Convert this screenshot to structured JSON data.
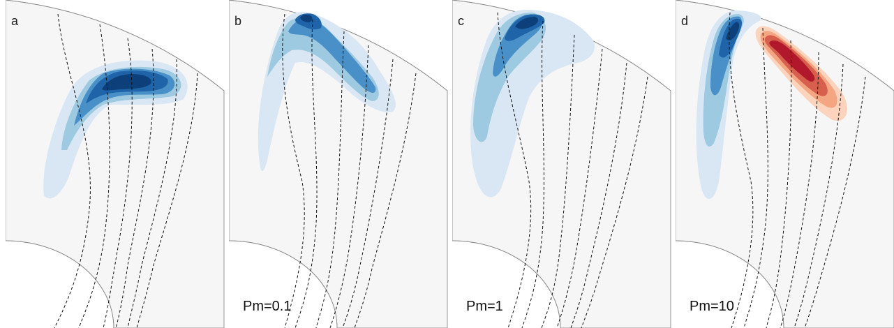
{
  "panels": [
    {
      "letter": "a",
      "pm_label": ""
    },
    {
      "letter": "b",
      "pm_label": "Pm=0.1"
    },
    {
      "letter": "c",
      "pm_label": "Pm=1"
    },
    {
      "letter": "d",
      "pm_label": "Pm=10"
    }
  ],
  "colors": {
    "background": "#f5f6f5",
    "blue_levels": [
      "#d9e7f4",
      "#9ecae1",
      "#4a90c8",
      "#1f64a8",
      "#0d3f7a"
    ],
    "red_levels": [
      "#fcd3bc",
      "#f4a582",
      "#d6604d",
      "#b2182b"
    ]
  }
}
